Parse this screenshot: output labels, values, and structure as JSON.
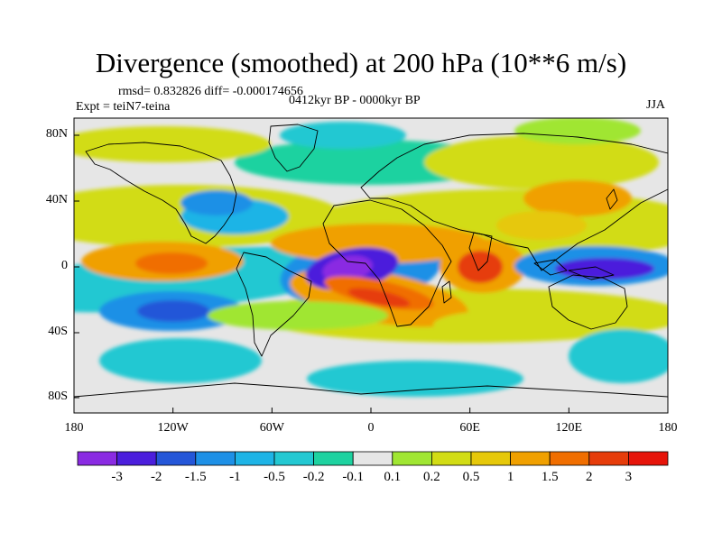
{
  "title": "Divergence (smoothed) at 200 hPa (10**6 m/s)",
  "stats": "rmsd= 0.832826 diff= -0.000174656",
  "experiment": "Expt = teiN7-teina",
  "period": "0412kyr BP - 0000kyr BP",
  "season": "JJA",
  "axes": {
    "lat_labels": [
      "80N",
      "40N",
      "0",
      "40S",
      "80S"
    ],
    "lon_labels": [
      "180",
      "120W",
      "60W",
      "0",
      "60E",
      "120E",
      "180"
    ]
  },
  "colorbar": {
    "labels": [
      "-3",
      "-2",
      "-1.5",
      "-1",
      "-0.5",
      "-0.2",
      "-0.1",
      "0.1",
      "0.2",
      "0.5",
      "1",
      "1.5",
      "2",
      "3"
    ],
    "colors": [
      "#8a2be2",
      "#4b1edc",
      "#2456d8",
      "#1e90e6",
      "#1eb4e6",
      "#23c8d2",
      "#1ed2a0",
      "#e6e6e6",
      "#a0e632",
      "#d2dc14",
      "#e6c80a",
      "#f0a000",
      "#f06e00",
      "#e63c0a",
      "#e6140a"
    ]
  },
  "field_features": [
    {
      "name": "strong convergence Atlantic",
      "value": -3.2
    },
    {
      "name": "strong convergence West Pacific",
      "value": -2.2
    },
    {
      "name": "strong divergence Atlantic",
      "value": 2.8
    },
    {
      "name": "strong divergence Indian Ocean",
      "value": 2.5
    },
    {
      "name": "convergence South Pacific",
      "value": -1.8
    }
  ]
}
